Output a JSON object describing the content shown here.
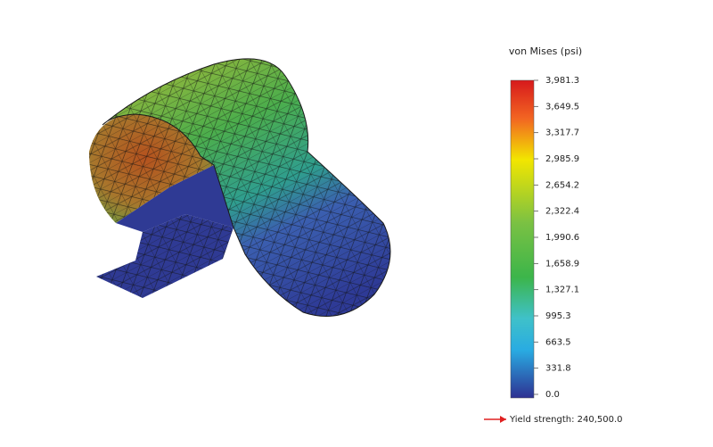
{
  "legend": {
    "title": "von Mises (psi)",
    "ticks": [
      "3,981.3",
      "3,649.5",
      "3,317.7",
      "2,985.9",
      "2,654.2",
      "2,322.4",
      "1,990.6",
      "1,658.9",
      "1,327.1",
      "995.3",
      "663.5",
      "331.8",
      "0.0"
    ]
  },
  "footer": {
    "yield_strength": "Yield strength: 240,500.0"
  }
}
